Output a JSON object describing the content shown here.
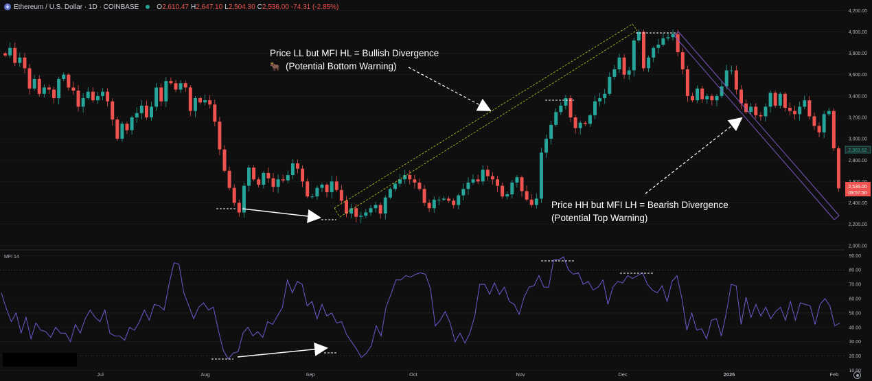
{
  "header": {
    "title": "Ethereum / U.S. Dollar · 1D · COINBASE",
    "ohlc": [
      {
        "label": "O",
        "value": "2,610.47"
      },
      {
        "label": "H",
        "value": "2,647.10"
      },
      {
        "label": "L",
        "value": "2,504.30"
      },
      {
        "label": "C",
        "value": "2,536.00"
      }
    ],
    "change": "-74.31 (-2.85%)"
  },
  "colors": {
    "background": "#0f0f0f",
    "up": "#26a69a",
    "down": "#ef5350",
    "mfi_line": "#6d5bd0",
    "channel_yellow": "#c9c92a",
    "channel_purple": "#7e57c2",
    "grid": "#1c1f26"
  },
  "mfi_label": "MFI 14",
  "annotations": {
    "bullish_line1": "Price LL but MFI HL = Bullish Divergence",
    "bullish_line2": "(Potential Bottom Warning)",
    "bullish_emoji": "🐂",
    "bearish_line1": "Price HH but MFI LH = Bearish Divergence",
    "bearish_line2": "(Potential Top Warning)"
  },
  "chart_data": [
    {
      "type": "candlestick",
      "title": "Ethereum / U.S. Dollar · 1D · COINBASE",
      "x_ticks": [
        "Jul",
        "Aug",
        "Sep",
        "Oct",
        "Nov",
        "Dec",
        "2025",
        "Feb"
      ],
      "y_ticks": [
        "2,000.00",
        "2,200.00",
        "2,400.00",
        "2,600.00",
        "2,800.00",
        "3,000.00",
        "3,200.00",
        "3,400.00",
        "3,600.00",
        "3,800.00",
        "4,000.00",
        "4,200.00"
      ],
      "ylim": [
        1960,
        4260
      ],
      "last_price_label": "2,883.62",
      "current_price_label": "2,536.00",
      "countdown_label": "09:57:50",
      "close_series": [
        3780,
        3850,
        3710,
        3760,
        3660,
        3470,
        3560,
        3420,
        3480,
        3460,
        3380,
        3560,
        3600,
        3480,
        3450,
        3300,
        3380,
        3440,
        3360,
        3400,
        3440,
        3350,
        3180,
        3000,
        3140,
        3080,
        3200,
        3240,
        3310,
        3200,
        3300,
        3480,
        3350,
        3540,
        3520,
        3460,
        3520,
        3480,
        3260,
        3380,
        3340,
        3360,
        3320,
        3160,
        2900,
        2700,
        2540,
        2400,
        2310,
        2560,
        2730,
        2620,
        2570,
        2680,
        2630,
        2550,
        2620,
        2610,
        2660,
        2770,
        2720,
        2600,
        2460,
        2460,
        2540,
        2570,
        2500,
        2600,
        2520,
        2420,
        2300,
        2350,
        2270,
        2280,
        2310,
        2350,
        2380,
        2300,
        2450,
        2530,
        2580,
        2620,
        2660,
        2620,
        2590,
        2530,
        2400,
        2350,
        2430,
        2430,
        2440,
        2420,
        2380,
        2470,
        2530,
        2590,
        2620,
        2600,
        2710,
        2650,
        2620,
        2560,
        2460,
        2480,
        2590,
        2640,
        2510,
        2430,
        2380,
        2440,
        2870,
        3000,
        3130,
        3250,
        3310,
        3380,
        3200,
        3100,
        3150,
        3140,
        3220,
        3350,
        3380,
        3420,
        3580,
        3650,
        3760,
        3600,
        3640,
        3920,
        4000,
        3660,
        3760,
        3850,
        3880,
        3940,
        3950,
        3980,
        3810,
        3650,
        3400,
        3360,
        3470,
        3370,
        3400,
        3360,
        3400,
        3490,
        3640,
        3640,
        3460,
        3330,
        3250,
        3300,
        3220,
        3210,
        3300,
        3430,
        3310,
        3420,
        3290,
        3260,
        3230,
        3300,
        3360,
        3210,
        3120,
        3060,
        3230,
        3260,
        2910,
        2536
      ]
    },
    {
      "type": "line",
      "title": "MFI 14",
      "y_ticks": [
        "10.00",
        "20.00",
        "30.00",
        "40.00",
        "50.00",
        "60.00",
        "70.00",
        "80.00",
        "90.00"
      ],
      "ylim": [
        5,
        93
      ],
      "series": [
        {
          "name": "MFI 14",
          "values": [
            64,
            53,
            44,
            50,
            36,
            47,
            32,
            43,
            38,
            37,
            33,
            40,
            36,
            36,
            30,
            42,
            36,
            46,
            52,
            47,
            44,
            52,
            36,
            34,
            34,
            31,
            40,
            38,
            44,
            52,
            45,
            56,
            55,
            52,
            70,
            85,
            84,
            64,
            55,
            46,
            54,
            57,
            52,
            54,
            38,
            24,
            18,
            22,
            23,
            36,
            40,
            34,
            37,
            33,
            44,
            42,
            48,
            54,
            73,
            64,
            72,
            70,
            55,
            58,
            46,
            56,
            48,
            50,
            43,
            44,
            35,
            30,
            25,
            19,
            22,
            27,
            41,
            34,
            54,
            63,
            73,
            73,
            76,
            75,
            77,
            78,
            77,
            67,
            41,
            45,
            51,
            43,
            30,
            36,
            29,
            36,
            48,
            70,
            70,
            63,
            71,
            63,
            68,
            58,
            56,
            49,
            61,
            68,
            69,
            76,
            68,
            68,
            87,
            87,
            89,
            80,
            77,
            78,
            70,
            72,
            66,
            68,
            73,
            56,
            68,
            72,
            71,
            76,
            74,
            76,
            78,
            70,
            66,
            64,
            69,
            58,
            72,
            76,
            60,
            38,
            50,
            38,
            39,
            32,
            45,
            46,
            34,
            50,
            70,
            69,
            42,
            61,
            47,
            56,
            48,
            54,
            46,
            51,
            54,
            45,
            58,
            45,
            57,
            56,
            55,
            42,
            56,
            60,
            55,
            41,
            43
          ]
        }
      ]
    }
  ]
}
